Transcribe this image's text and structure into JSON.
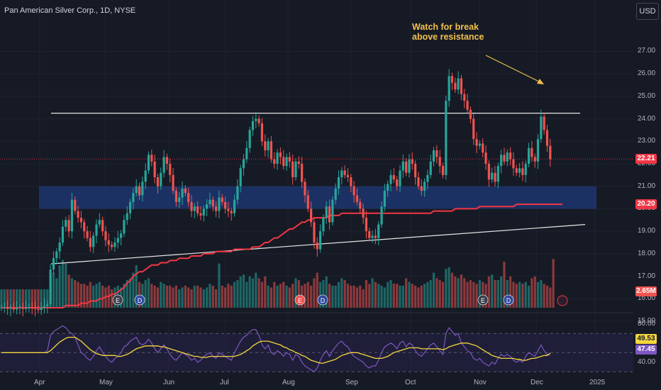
{
  "chart_data": {
    "type": "candlestick",
    "symbol": "Pan American Silver Corp., 1D, NYSE",
    "currency": "USD",
    "annotation": [
      "Watch for break",
      "above resistance"
    ],
    "x_ticks": [
      "Apr",
      "May",
      "Jun",
      "Jul",
      "Aug",
      "Sep",
      "Oct",
      "Nov",
      "Dec",
      "2025"
    ],
    "price_ticks": [
      "27.00",
      "26.00",
      "25.00",
      "24.00",
      "23.00",
      "22.00",
      "21.00",
      "20.00",
      "19.00",
      "18.00",
      "17.00",
      "16.00",
      "15.00"
    ],
    "price_range": [
      15,
      27.5
    ],
    "last_price": "22.21",
    "ma_200_value": "20.20",
    "volume_value": "2.65M",
    "resistance_level": 24.25,
    "demand_zone": [
      20.0,
      21.0
    ],
    "rsi_ticks": [
      "80.00",
      "40.00"
    ],
    "rsi_values": [
      "49.53",
      "47.45"
    ],
    "rsi_range": [
      30,
      85
    ],
    "closes": [
      15.6,
      15.62,
      15.55,
      15.6,
      15.52,
      15.58,
      15.6,
      15.55,
      15.6,
      15.62,
      15.58,
      15.55,
      15.5,
      15.62,
      15.68,
      15.75,
      17.3,
      17.8,
      18.1,
      18.5,
      19.2,
      19.5,
      19.0,
      20.4,
      19.9,
      19.6,
      19.4,
      19.0,
      18.7,
      18.3,
      18.8,
      19.3,
      19.5,
      19.0,
      18.6,
      18.4,
      18.3,
      18.5,
      18.7,
      18.9,
      19.5,
      19.8,
      20.3,
      20.7,
      21.0,
      20.6,
      21.2,
      21.7,
      22.4,
      22.1,
      21.4,
      21.0,
      21.6,
      22.3,
      22.0,
      21.5,
      20.8,
      20.3,
      20.5,
      20.9,
      20.7,
      20.3,
      19.9,
      20.1,
      19.8,
      19.7,
      20.0,
      20.2,
      20.4,
      20.1,
      19.9,
      20.5,
      20.3,
      20.0,
      19.9,
      19.8,
      20.4,
      21.0,
      21.8,
      22.2,
      22.7,
      23.5,
      23.9,
      24.0,
      23.8,
      23.0,
      22.6,
      23.0,
      22.2,
      22.0,
      22.5,
      22.3,
      21.9,
      22.3,
      22.1,
      21.4,
      22.1,
      22.0,
      21.2,
      20.6,
      20.0,
      19.4,
      18.5,
      18.2,
      19.0,
      19.6,
      20.1,
      19.4,
      20.4,
      20.9,
      21.4,
      21.7,
      21.5,
      21.4,
      21.0,
      20.6,
      20.3,
      20.0,
      19.6,
      19.0,
      18.7,
      18.8,
      18.7,
      19.3,
      20.1,
      20.8,
      21.1,
      21.5,
      21.3,
      21.0,
      21.7,
      22.1,
      21.6,
      22.2,
      22.0,
      21.4,
      21.0,
      20.8,
      21.2,
      21.5,
      22.1,
      22.6,
      22.3,
      21.9,
      21.5,
      24.8,
      25.9,
      25.6,
      25.3,
      25.8,
      25.1,
      24.8,
      24.4,
      24.0,
      23.1,
      22.8,
      22.9,
      22.5,
      22.0,
      21.3,
      21.6,
      21.2,
      21.9,
      22.4,
      22.1,
      22.5,
      22.2,
      21.8,
      21.6,
      21.8,
      21.5,
      22.0,
      22.7,
      22.3,
      22.1,
      23.1,
      24.1,
      23.5,
      22.8,
      22.2
    ],
    "ma_200": [
      15.6,
      15.6,
      15.6,
      15.6,
      15.6,
      15.6,
      15.6,
      15.6,
      15.6,
      15.6,
      15.6,
      15.6,
      15.6,
      15.6,
      15.6,
      15.6,
      15.6,
      15.6,
      15.6,
      15.6,
      15.6,
      15.7,
      15.7,
      15.7,
      15.7,
      15.7,
      15.8,
      15.8,
      15.8,
      15.9,
      15.9,
      15.9,
      16.0,
      16.0,
      16.1,
      16.1,
      16.2,
      16.2,
      16.3,
      16.4,
      16.5,
      16.7,
      16.8,
      17.0,
      17.1,
      17.2,
      17.2,
      17.3,
      17.4,
      17.5,
      17.5,
      17.5,
      17.6,
      17.6,
      17.6,
      17.7,
      17.7,
      17.7,
      17.8,
      17.8,
      17.8,
      17.8,
      17.9,
      17.9,
      17.9,
      17.9,
      18.0,
      18.0,
      18.0,
      18.0,
      18.1,
      18.1,
      18.1,
      18.1,
      18.1,
      18.1,
      18.2,
      18.2,
      18.2,
      18.2,
      18.2,
      18.2,
      18.3,
      18.3,
      18.3,
      18.4,
      18.5,
      18.5,
      18.6,
      18.7,
      18.7,
      18.8,
      18.9,
      19.0,
      19.1,
      19.1,
      19.2,
      19.3,
      19.4,
      19.4,
      19.5,
      19.5,
      19.6,
      19.6,
      19.6,
      19.6,
      19.6,
      19.7,
      19.7,
      19.7,
      19.7,
      19.8,
      19.8,
      19.8,
      19.8,
      19.8,
      19.8,
      19.8,
      19.8,
      19.8,
      19.8,
      19.8,
      19.8,
      19.8,
      19.8,
      19.8,
      19.8,
      19.8,
      19.8,
      19.8,
      19.8,
      19.8,
      19.8,
      19.8,
      19.8,
      19.8,
      19.8,
      19.8,
      19.8,
      19.8,
      19.8,
      19.9,
      19.9,
      19.9,
      19.9,
      19.9,
      19.9,
      19.9,
      20.0,
      20.0,
      20.0,
      20.0,
      20.0,
      20.0,
      20.0,
      20.0,
      20.1,
      20.1,
      20.1,
      20.1,
      20.1,
      20.1,
      20.1,
      20.1,
      20.1,
      20.1,
      20.1,
      20.1,
      20.2,
      20.2,
      20.2,
      20.2,
      20.2,
      20.2,
      20.2,
      20.2,
      20.2,
      20.2,
      20.2,
      20.2,
      20.2,
      20.2,
      20.2,
      20.2
    ],
    "rsi": [
      50,
      50,
      50,
      50,
      50,
      50,
      50,
      50,
      50,
      50,
      50,
      50,
      50,
      50,
      50,
      52,
      68,
      72,
      74,
      76,
      78,
      76,
      72,
      70,
      66,
      58,
      50,
      48,
      44,
      42,
      46,
      52,
      56,
      50,
      46,
      42,
      40,
      44,
      46,
      50,
      56,
      58,
      62,
      64,
      66,
      60,
      58,
      60,
      64,
      60,
      54,
      50,
      54,
      58,
      54,
      48,
      44,
      42,
      46,
      50,
      48,
      46,
      42,
      44,
      40,
      42,
      46,
      48,
      50,
      46,
      44,
      50,
      48,
      46,
      44,
      42,
      50,
      56,
      62,
      66,
      68,
      72,
      74,
      74,
      68,
      58,
      54,
      58,
      50,
      48,
      52,
      50,
      46,
      50,
      48,
      42,
      48,
      46,
      40,
      36,
      34,
      32,
      30,
      34,
      42,
      48,
      52,
      46,
      52,
      56,
      60,
      62,
      58,
      56,
      50,
      46,
      44,
      42,
      40,
      36,
      34,
      36,
      36,
      42,
      50,
      56,
      58,
      60,
      58,
      54,
      60,
      62,
      56,
      60,
      58,
      52,
      48,
      46,
      50,
      54,
      58,
      60,
      56,
      52,
      48,
      70,
      76,
      72,
      68,
      70,
      60,
      56,
      52,
      50,
      44,
      42,
      44,
      40,
      38,
      36,
      40,
      38,
      44,
      48,
      46,
      48,
      46,
      42,
      40,
      42,
      40,
      46,
      50,
      48,
      46,
      52,
      58,
      52,
      48,
      47.45
    ],
    "rsi_ma": [
      50,
      50,
      50,
      50,
      50,
      50,
      50,
      50,
      50,
      50,
      50,
      50,
      50,
      50,
      50,
      50,
      52,
      55,
      58,
      61,
      63,
      65,
      66,
      66,
      66,
      64,
      62,
      59,
      56,
      53,
      51,
      49,
      48,
      47,
      47,
      47,
      47,
      47,
      46,
      46,
      47,
      48,
      50,
      52,
      54,
      55,
      56,
      57,
      57,
      57,
      57,
      57,
      56,
      56,
      55,
      54,
      53,
      52,
      51,
      50,
      49,
      48,
      47,
      46,
      46,
      45,
      45,
      45,
      46,
      46,
      46,
      46,
      46,
      46,
      46,
      46,
      46,
      47,
      48,
      50,
      52,
      54,
      57,
      59,
      61,
      62,
      62,
      62,
      61,
      60,
      59,
      58,
      56,
      55,
      53,
      52,
      50,
      49,
      47,
      46,
      44,
      42,
      41,
      40,
      39,
      39,
      40,
      41,
      42,
      43,
      45,
      47,
      48,
      49,
      50,
      50,
      50,
      49,
      48,
      47,
      46,
      45,
      44,
      44,
      44,
      45,
      46,
      48,
      50,
      51,
      52,
      53,
      54,
      55,
      55,
      55,
      55,
      54,
      54,
      54,
      54,
      54,
      54,
      54,
      53,
      54,
      56,
      57,
      58,
      59,
      60,
      60,
      60,
      59,
      58,
      57,
      55,
      53,
      51,
      49,
      47,
      46,
      45,
      44,
      44,
      44,
      44,
      44,
      43,
      43,
      42,
      42,
      43,
      44,
      44,
      45,
      46,
      47,
      47,
      49.53
    ],
    "volume": [
      1.0,
      1.0,
      1.0,
      1.0,
      1.0,
      1.0,
      1.0,
      1.0,
      1.0,
      1.0,
      1.0,
      1.0,
      1.0,
      1.0,
      1.0,
      1.0,
      1.7,
      1.9,
      1.6,
      2.3,
      2.6,
      2.4,
      1.8,
      1.6,
      1.5,
      1.4,
      1.3,
      1.3,
      1.2,
      1.4,
      1.2,
      1.3,
      1.4,
      1.2,
      1.1,
      1.2,
      1.0,
      1.1,
      1.2,
      1.1,
      1.3,
      1.5,
      1.6,
      1.9,
      2.3,
      1.4,
      1.3,
      1.5,
      1.6,
      1.3,
      1.2,
      1.1,
      1.4,
      1.3,
      1.2,
      1.2,
      1.1,
      1.2,
      1.0,
      1.1,
      1.2,
      1.1,
      1.0,
      1.2,
      1.2,
      1.1,
      1.0,
      1.1,
      1.3,
      1.2,
      1.0,
      2.4,
      1.2,
      1.1,
      1.3,
      1.2,
      1.4,
      1.5,
      1.7,
      1.8,
      1.4,
      1.7,
      1.6,
      1.9,
      1.6,
      1.4,
      1.7,
      1.2,
      1.1,
      1.4,
      1.2,
      1.3,
      1.4,
      1.2,
      1.1,
      1.3,
      1.6,
      1.5,
      1.2,
      1.3,
      1.4,
      1.2,
      1.6,
      1.9,
      1.4,
      1.5,
      1.7,
      1.3,
      1.2,
      1.2,
      1.4,
      1.6,
      1.5,
      1.3,
      1.2,
      1.2,
      1.1,
      1.2,
      1.0,
      1.5,
      1.3,
      1.6,
      1.4,
      1.3,
      1.2,
      1.1,
      1.4,
      1.5,
      1.3,
      1.3,
      1.2,
      1.2,
      1.6,
      1.4,
      1.3,
      1.2,
      1.1,
      1.2,
      1.3,
      1.4,
      1.5,
      1.9,
      1.6,
      1.5,
      1.4,
      2.1,
      2.2,
      1.9,
      1.7,
      1.6,
      1.8,
      1.6,
      1.4,
      1.5,
      1.4,
      1.3,
      1.5,
      1.4,
      1.3,
      1.7,
      1.8,
      1.5,
      1.5,
      1.7,
      2.5,
      1.5,
      1.7,
      1.4,
      1.3,
      1.4,
      1.3,
      1.4,
      1.2,
      1.6,
      1.7,
      1.4,
      1.5,
      1.3,
      1.2,
      1.1,
      2.65
    ]
  },
  "colors": {
    "background": "#161a25",
    "up": "#26a69a",
    "down": "#ef5350",
    "ma": "#f23645",
    "rsi": "#7e57c2",
    "rsi_ma": "#f5d63d",
    "zone": "#1f3a78",
    "annotation": "#f0c04a"
  }
}
